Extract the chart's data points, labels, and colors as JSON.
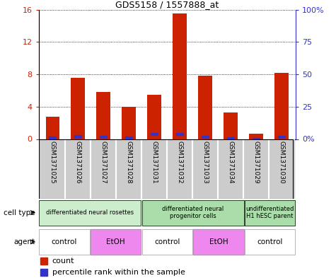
{
  "title": "GDS5158 / 1557888_at",
  "samples": [
    "GSM1371025",
    "GSM1371026",
    "GSM1371027",
    "GSM1371028",
    "GSM1371031",
    "GSM1371032",
    "GSM1371033",
    "GSM1371034",
    "GSM1371029",
    "GSM1371030"
  ],
  "counts": [
    2.8,
    7.6,
    5.8,
    4.0,
    5.5,
    15.5,
    7.8,
    3.3,
    0.7,
    8.2
  ],
  "percentile_ranks_scaled": [
    0.9,
    1.9,
    1.5,
    1.1,
    3.7,
    3.7,
    1.6,
    0.7,
    0.2,
    1.8
  ],
  "ylim_left": [
    0,
    16
  ],
  "ylim_right": [
    0,
    100
  ],
  "yticks_left": [
    0,
    4,
    8,
    12,
    16
  ],
  "yticks_right": [
    0,
    25,
    50,
    75,
    100
  ],
  "yticklabels_left": [
    "0",
    "4",
    "8",
    "12",
    "16"
  ],
  "yticklabels_right": [
    "0%",
    "25",
    "50",
    "75",
    "100%"
  ],
  "bar_color": "#cc2200",
  "square_color": "#3333cc",
  "cell_type_groups": [
    {
      "label": "differentiated neural rosettes",
      "start": 0,
      "end": 4,
      "color": "#cceecc"
    },
    {
      "label": "differentiated neural\nprogenitor cells",
      "start": 4,
      "end": 8,
      "color": "#aaddaa"
    },
    {
      "label": "undifferentiated\nH1 hESC parent",
      "start": 8,
      "end": 10,
      "color": "#aaddaa"
    }
  ],
  "agent_groups": [
    {
      "label": "control",
      "start": 0,
      "end": 2,
      "color": "#ffffff"
    },
    {
      "label": "EtOH",
      "start": 2,
      "end": 4,
      "color": "#ee88ee"
    },
    {
      "label": "control",
      "start": 4,
      "end": 6,
      "color": "#ffffff"
    },
    {
      "label": "EtOH",
      "start": 6,
      "end": 8,
      "color": "#ee88ee"
    },
    {
      "label": "control",
      "start": 8,
      "end": 10,
      "color": "#ffffff"
    }
  ],
  "cell_type_row_label": "cell type",
  "agent_row_label": "agent",
  "legend_count_label": "count",
  "legend_percentile_label": "percentile rank within the sample",
  "sample_bg_color": "#cccccc",
  "title_fontsize": 9
}
